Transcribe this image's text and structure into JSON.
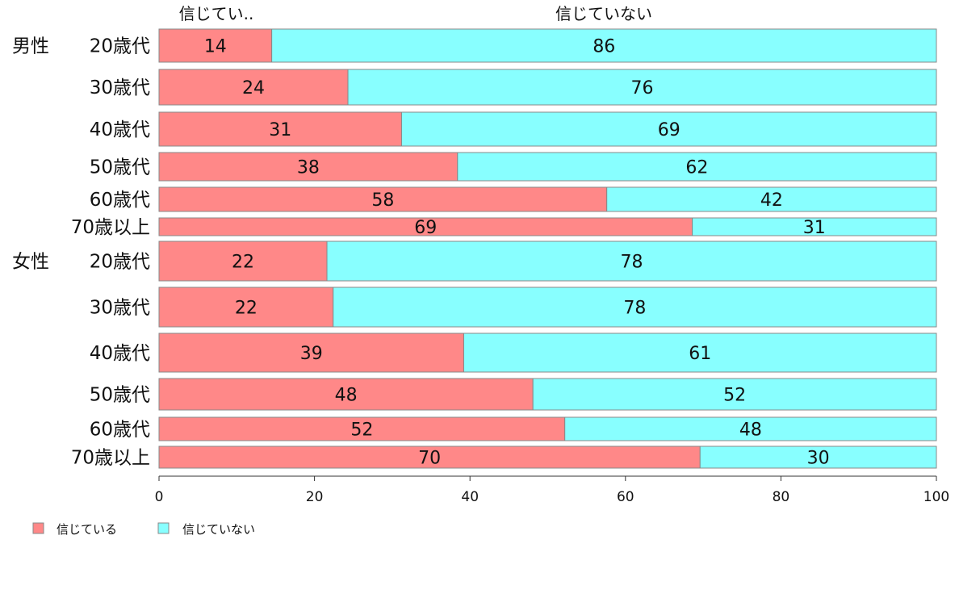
{
  "colors": {
    "believe": "#ff8888",
    "not_believe": "#88ffff",
    "border": "#888888"
  },
  "chart_data": {
    "type": "bar",
    "orientation": "horizontal",
    "stacked": true,
    "column_headers": [
      "信じてい..",
      "信じていない"
    ],
    "groups": [
      {
        "name": "男性",
        "rows": [
          "20歳代",
          "30歳代",
          "40歳代",
          "50歳代",
          "60歳代",
          "70歳以上"
        ]
      },
      {
        "name": "女性",
        "rows": [
          "20歳代",
          "30歳代",
          "40歳代",
          "50歳代",
          "60歳代",
          "70歳以上"
        ]
      }
    ],
    "categories": [
      "男性 20歳代",
      "男性 30歳代",
      "男性 40歳代",
      "男性 50歳代",
      "男性 60歳代",
      "男性 70歳以上",
      "女性 20歳代",
      "女性 30歳代",
      "女性 40歳代",
      "女性 50歳代",
      "女性 60歳代",
      "女性 70歳以上"
    ],
    "series": [
      {
        "name": "信じている",
        "values": [
          14,
          24,
          31,
          38,
          58,
          69,
          22,
          22,
          39,
          48,
          52,
          70
        ]
      },
      {
        "name": "信じていない",
        "values": [
          86,
          76,
          69,
          62,
          42,
          31,
          78,
          78,
          61,
          52,
          48,
          30
        ]
      }
    ],
    "exact_values": {
      "信じている": [
        14.5,
        24.3,
        31.2,
        38.4,
        57.6,
        68.6,
        21.6,
        22.4,
        39.2,
        48.1,
        52.2,
        69.6
      ]
    },
    "xlim": [
      0,
      100
    ],
    "xticks": [
      0,
      20,
      40,
      60,
      80,
      100
    ],
    "legend": {
      "placement": "bottom-left",
      "entries": [
        "信じている",
        "信じていない"
      ]
    }
  }
}
